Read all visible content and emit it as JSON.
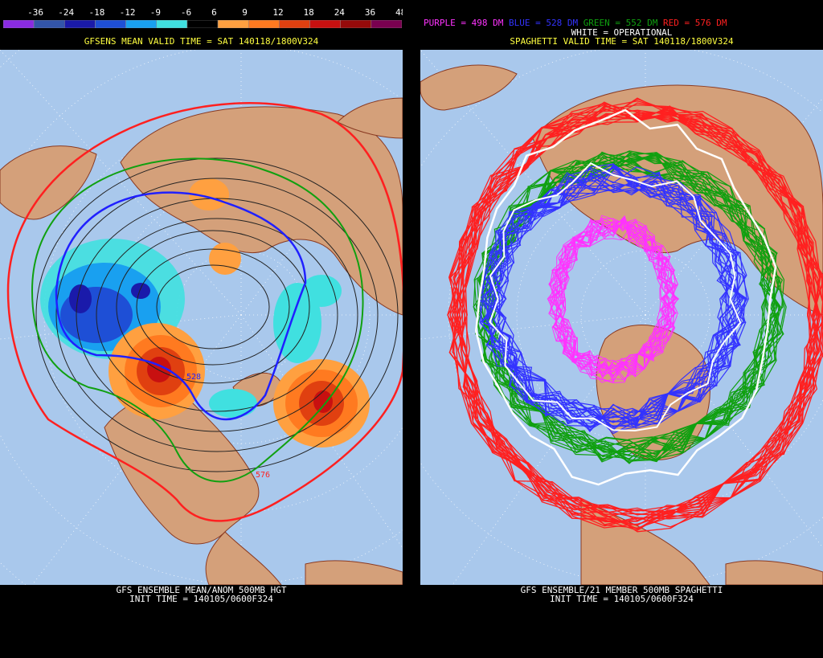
{
  "left_panel": {
    "colorbar": {
      "labels": [
        "-36",
        "-24",
        "-18",
        "-12",
        "-9",
        "-6",
        "6",
        "9",
        "12",
        "18",
        "24",
        "36",
        "48"
      ],
      "colors": [
        "#8a2be2",
        "#3355aa",
        "#1a1aaa",
        "#1e4fd6",
        "#19a0f0",
        "#40e0e0",
        "#000000",
        "#ffa040",
        "#ff7a20",
        "#e04010",
        "#c81010",
        "#960a0a",
        "#7a0050"
      ]
    },
    "valid_time": "GFSENS MEAN VALID TIME = SAT 140118/1800V324",
    "footer_line1": "GFS ENSEMBLE MEAN/ANOM 500MB HGT",
    "footer_line2": "INIT TIME = 140105/0600F324",
    "contour_labels": [
      "528",
      "576"
    ]
  },
  "right_panel": {
    "legend": {
      "purple": "PURPLE = 498 DM",
      "blue": "BLUE = 528 DM",
      "green": "GREEN = 552 DM",
      "red": "RED = 576 DM",
      "white": "WHITE = OPERATIONAL"
    },
    "valid_time": "SPAGHETTI VALID TIME = SAT 140118/1800V324",
    "footer_line1": "GFS ENSEMBLE/21 MEMBER 500MB SPAGHETTI",
    "footer_line2": "INIT TIME = 140105/0600F324"
  },
  "colors": {
    "ocean": "#a9c8ec",
    "land": "#d4a07a",
    "border": "#8a3a22",
    "header_text": "#ffff40",
    "purple": "#ff33ff",
    "blue": "#3333ff",
    "green": "#10a010",
    "red": "#ff2020"
  }
}
